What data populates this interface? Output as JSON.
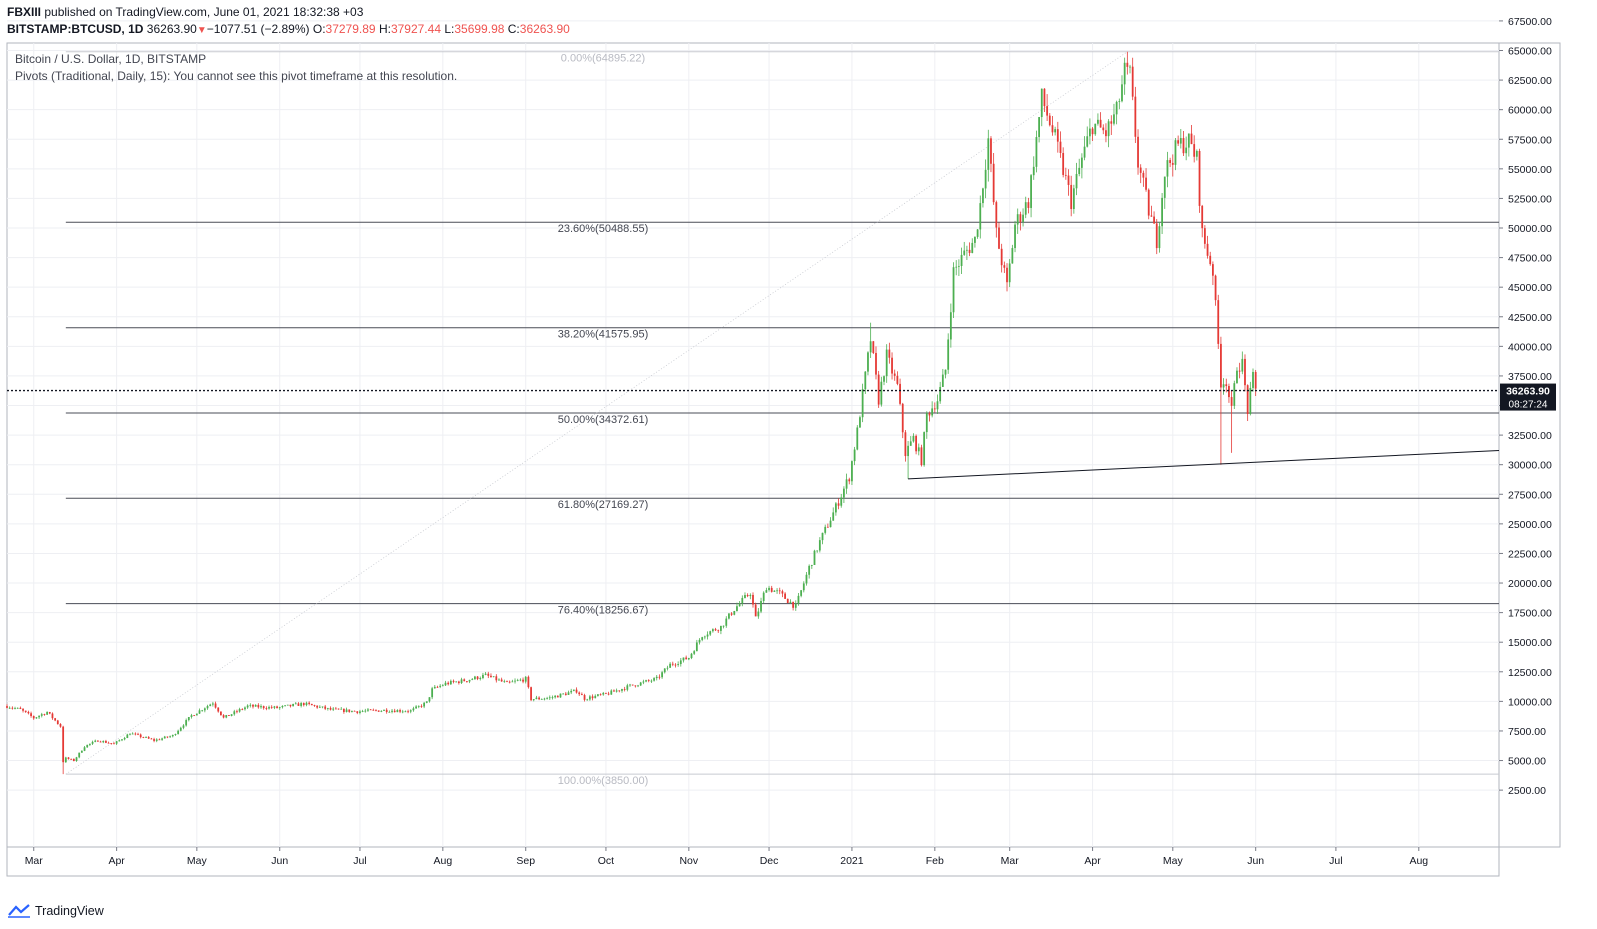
{
  "header": {
    "publisher": "FBXIII",
    "published_text": "published on TradingView.com, June 01, 2021 18:32:38 +03",
    "symbol": "BITSTAMP:BTCUSD, 1D",
    "price": "36263.90",
    "change": "−1077.51 (−2.89%)",
    "o_label": "O:",
    "o_value": "37279.89",
    "h_label": "H:",
    "h_value": "37927.44",
    "l_label": "L:",
    "l_value": "35699.98",
    "c_label": "C:",
    "c_value": "36263.90"
  },
  "legend": {
    "series": "Bitcoin / U.S. Dollar, 1D, BITSTAMP",
    "pivots": "Pivots (Traditional, Daily, 15): You cannot see this pivot timeframe at this resolution."
  },
  "footer": {
    "brand": "TradingView"
  },
  "colors": {
    "up": "#4caf50",
    "down": "#e53935",
    "grid": "#eeeff3",
    "fib_line": "#787b86",
    "price_tag": "#131722"
  },
  "chart_data": {
    "type": "candlestick",
    "y_axis": {
      "min": 0,
      "max": 68000,
      "ticks": [
        2500,
        5000,
        7500,
        10000,
        12500,
        15000,
        17500,
        20000,
        22500,
        25000,
        27500,
        30000,
        32500,
        35000,
        37500,
        40000,
        42500,
        45000,
        47500,
        50000,
        52500,
        55000,
        57500,
        60000,
        62500,
        65000,
        67500
      ],
      "tick_labels": [
        "2500.00",
        "5000.00",
        "7500.00",
        "10000.00",
        "12500.00",
        "15000.00",
        "17500.00",
        "20000.00",
        "22500.00",
        "25000.00",
        "27500.00",
        "30000.00",
        "32500.00",
        "35000.00",
        "37500.00",
        "40000.00",
        "42500.00",
        "45000.00",
        "47500.00",
        "50000.00",
        "52500.00",
        "55000.00",
        "57500.00",
        "60000.00",
        "62500.00",
        "65000.00",
        "67500.00"
      ]
    },
    "x_axis": {
      "start": "2020-02-20",
      "end": "2021-08-31",
      "ticks": [
        {
          "label": "Mar",
          "date": "2020-03-01"
        },
        {
          "label": "Apr",
          "date": "2020-04-01"
        },
        {
          "label": "May",
          "date": "2020-05-01"
        },
        {
          "label": "Jun",
          "date": "2020-06-01"
        },
        {
          "label": "Jul",
          "date": "2020-07-01"
        },
        {
          "label": "Aug",
          "date": "2020-08-01"
        },
        {
          "label": "Sep",
          "date": "2020-09-01"
        },
        {
          "label": "Oct",
          "date": "2020-10-01"
        },
        {
          "label": "Nov",
          "date": "2020-11-01"
        },
        {
          "label": "Dec",
          "date": "2020-12-01"
        },
        {
          "label": "2021",
          "date": "2021-01-01"
        },
        {
          "label": "Feb",
          "date": "2021-02-01"
        },
        {
          "label": "Mar",
          "date": "2021-03-01"
        },
        {
          "label": "Apr",
          "date": "2021-04-01"
        },
        {
          "label": "May",
          "date": "2021-05-01"
        },
        {
          "label": "Jun",
          "date": "2021-06-01"
        },
        {
          "label": "Jul",
          "date": "2021-07-01"
        },
        {
          "label": "Aug",
          "date": "2021-08-01"
        }
      ]
    },
    "close_path": [
      [
        "2020-02-20",
        9600
      ],
      [
        "2020-02-25",
        9300
      ],
      [
        "2020-03-01",
        8600
      ],
      [
        "2020-03-06",
        9100
      ],
      [
        "2020-03-11",
        7900
      ],
      [
        "2020-03-12",
        4900
      ],
      [
        "2020-03-13",
        5200
      ],
      [
        "2020-03-16",
        5000
      ],
      [
        "2020-03-20",
        6200
      ],
      [
        "2020-03-25",
        6700
      ],
      [
        "2020-03-31",
        6400
      ],
      [
        "2020-04-06",
        7300
      ],
      [
        "2020-04-15",
        6700
      ],
      [
        "2020-04-22",
        7100
      ],
      [
        "2020-04-29",
        8800
      ],
      [
        "2020-05-07",
        9900
      ],
      [
        "2020-05-11",
        8600
      ],
      [
        "2020-05-20",
        9600
      ],
      [
        "2020-05-31",
        9450
      ],
      [
        "2020-06-10",
        9800
      ],
      [
        "2020-06-20",
        9300
      ],
      [
        "2020-06-30",
        9150
      ],
      [
        "2020-07-10",
        9250
      ],
      [
        "2020-07-20",
        9200
      ],
      [
        "2020-07-26",
        9900
      ],
      [
        "2020-07-28",
        11000
      ],
      [
        "2020-08-02",
        11500
      ],
      [
        "2020-08-10",
        11800
      ],
      [
        "2020-08-17",
        12200
      ],
      [
        "2020-08-25",
        11500
      ],
      [
        "2020-09-01",
        11900
      ],
      [
        "2020-09-03",
        10200
      ],
      [
        "2020-09-10",
        10300
      ],
      [
        "2020-09-20",
        10900
      ],
      [
        "2020-09-23",
        10250
      ],
      [
        "2020-10-01",
        10600
      ],
      [
        "2020-10-10",
        11300
      ],
      [
        "2020-10-20",
        11900
      ],
      [
        "2020-10-25",
        13100
      ],
      [
        "2020-11-01",
        13700
      ],
      [
        "2020-11-06",
        15600
      ],
      [
        "2020-11-13",
        16300
      ],
      [
        "2020-11-18",
        17800
      ],
      [
        "2020-11-24",
        19200
      ],
      [
        "2020-11-26",
        17000
      ],
      [
        "2020-11-30",
        19700
      ],
      [
        "2020-12-05",
        19100
      ],
      [
        "2020-12-11",
        18000
      ],
      [
        "2020-12-16",
        21300
      ],
      [
        "2020-12-20",
        23500
      ],
      [
        "2020-12-26",
        26400
      ],
      [
        "2020-12-31",
        29000
      ],
      [
        "2021-01-03",
        32800
      ],
      [
        "2021-01-08",
        40600
      ],
      [
        "2021-01-11",
        35500
      ],
      [
        "2021-01-14",
        39200
      ],
      [
        "2021-01-18",
        36600
      ],
      [
        "2021-01-21",
        31000
      ],
      [
        "2021-01-24",
        32200
      ],
      [
        "2021-01-27",
        30400
      ],
      [
        "2021-01-29",
        34200
      ],
      [
        "2021-02-02",
        35500
      ],
      [
        "2021-02-05",
        38000
      ],
      [
        "2021-02-08",
        46300
      ],
      [
        "2021-02-12",
        47800
      ],
      [
        "2021-02-16",
        49000
      ],
      [
        "2021-02-18",
        52000
      ],
      [
        "2021-02-21",
        57500
      ],
      [
        "2021-02-24",
        49500
      ],
      [
        "2021-02-28",
        45000
      ],
      [
        "2021-03-03",
        50300
      ],
      [
        "2021-03-08",
        52300
      ],
      [
        "2021-03-13",
        61000
      ],
      [
        "2021-03-18",
        57500
      ],
      [
        "2021-03-24",
        52300
      ],
      [
        "2021-03-28",
        55800
      ],
      [
        "2021-04-01",
        58800
      ],
      [
        "2021-04-06",
        58000
      ],
      [
        "2021-04-10",
        59800
      ],
      [
        "2021-04-13",
        63200
      ],
      [
        "2021-04-15",
        62900
      ],
      [
        "2021-04-18",
        55500
      ],
      [
        "2021-04-22",
        51500
      ],
      [
        "2021-04-25",
        49000
      ],
      [
        "2021-04-28",
        54800
      ],
      [
        "2021-05-03",
        57000
      ],
      [
        "2021-05-07",
        57300
      ],
      [
        "2021-05-10",
        55800
      ],
      [
        "2021-05-12",
        49500
      ],
      [
        "2021-05-16",
        46400
      ],
      [
        "2021-05-19",
        37000
      ],
      [
        "2021-05-21",
        37100
      ],
      [
        "2021-05-23",
        34500
      ],
      [
        "2021-05-25",
        38400
      ],
      [
        "2021-05-27",
        38500
      ],
      [
        "2021-05-29",
        34600
      ],
      [
        "2021-05-31",
        37300
      ],
      [
        "2021-06-01",
        36264
      ]
    ],
    "fib_levels": [
      {
        "label": "0.00%(64895.22)",
        "value": 64895.22
      },
      {
        "label": "23.60%(50488.55)",
        "value": 50488.55
      },
      {
        "label": "38.20%(41575.95)",
        "value": 41575.95
      },
      {
        "label": "50.00%(34372.61)",
        "value": 34372.61
      },
      {
        "label": "61.80%(27169.27)",
        "value": 27169.27
      },
      {
        "label": "76.40%(18256.67)",
        "value": 18256.67
      },
      {
        "label": "100.00%(3850.00)",
        "value": 3850.0
      }
    ],
    "fib_range": {
      "from_date": "2020-03-13",
      "to_date": "2021-04-14"
    },
    "trend_line": {
      "start": [
        "2021-01-22",
        28800
      ],
      "end": [
        "2021-08-31",
        31200
      ]
    },
    "last_price": {
      "value": 36263.9,
      "label": "36263.90",
      "countdown": "08:27:24"
    }
  }
}
